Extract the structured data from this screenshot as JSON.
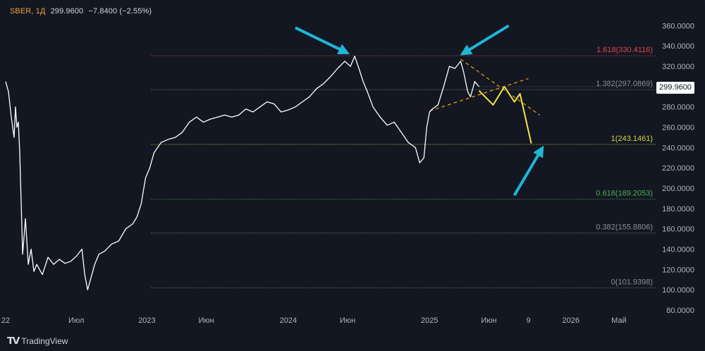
{
  "header": {
    "symbol": "SBER, 1Д",
    "last": "299.9600",
    "change": "−7.8400 (−2.55%)"
  },
  "branding": {
    "logo_text": "TradingView",
    "logo_icon": "tradingview-logo-icon"
  },
  "current_price_label": "299.9600",
  "colors": {
    "background": "#131722",
    "price_line": "#ffffff",
    "forecast_line": "#f5e342",
    "trend_dashes": "#f0a30a",
    "arrows": "#1fb6d6",
    "fib_red": "#e0474c",
    "fib_yellow": "#d8d13a",
    "fib_green": "#4caf50",
    "fib_gray": "#8a8d96",
    "axis_text": "#b2b5be"
  },
  "chart_data": {
    "type": "line",
    "y_axis": {
      "ticks": [
        "80.0000",
        "100.0000",
        "120.0000",
        "140.0000",
        "160.0000",
        "180.0000",
        "200.0000",
        "220.0000",
        "240.0000",
        "260.0000",
        "280.0000",
        "300.0000",
        "320.0000",
        "340.0000",
        "360.0000"
      ],
      "ylim": [
        80,
        370
      ]
    },
    "x_axis": {
      "ticks": [
        {
          "label": "22",
          "t": 0.0
        },
        {
          "label": "Июл",
          "t": 0.5
        },
        {
          "label": "2023",
          "t": 1.0
        },
        {
          "label": "Июн",
          "t": 1.42
        },
        {
          "label": "2024",
          "t": 2.0
        },
        {
          "label": "Июн",
          "t": 2.42
        },
        {
          "label": "2025",
          "t": 3.0
        },
        {
          "label": "Июн",
          "t": 3.42
        },
        {
          "label": "9",
          "t": 3.7
        },
        {
          "label": "2026",
          "t": 4.0
        },
        {
          "label": "Май",
          "t": 4.34
        }
      ],
      "xlim": [
        0.0,
        4.6
      ]
    },
    "series": [
      {
        "points": [
          [
            0.0,
            305
          ],
          [
            0.02,
            295
          ],
          [
            0.04,
            270
          ],
          [
            0.06,
            250
          ],
          [
            0.07,
            280
          ],
          [
            0.08,
            260
          ],
          [
            0.09,
            265
          ],
          [
            0.1,
            235
          ],
          [
            0.12,
            135
          ],
          [
            0.14,
            170
          ],
          [
            0.16,
            125
          ],
          [
            0.18,
            140
          ],
          [
            0.2,
            118
          ],
          [
            0.22,
            125
          ],
          [
            0.26,
            115
          ],
          [
            0.3,
            132
          ],
          [
            0.34,
            125
          ],
          [
            0.38,
            130
          ],
          [
            0.42,
            126
          ],
          [
            0.46,
            128
          ],
          [
            0.5,
            133
          ],
          [
            0.54,
            140
          ],
          [
            0.56,
            115
          ],
          [
            0.58,
            100
          ],
          [
            0.6,
            110
          ],
          [
            0.63,
            125
          ],
          [
            0.66,
            135
          ],
          [
            0.7,
            138
          ],
          [
            0.75,
            145
          ],
          [
            0.8,
            148
          ],
          [
            0.85,
            160
          ],
          [
            0.9,
            165
          ],
          [
            0.93,
            172
          ],
          [
            0.96,
            185
          ],
          [
            0.99,
            210
          ],
          [
            1.02,
            220
          ],
          [
            1.05,
            235
          ],
          [
            1.1,
            245
          ],
          [
            1.15,
            248
          ],
          [
            1.2,
            250
          ],
          [
            1.25,
            255
          ],
          [
            1.3,
            265
          ],
          [
            1.35,
            270
          ],
          [
            1.4,
            265
          ],
          [
            1.45,
            268
          ],
          [
            1.5,
            270
          ],
          [
            1.55,
            272
          ],
          [
            1.6,
            270
          ],
          [
            1.65,
            272
          ],
          [
            1.7,
            278
          ],
          [
            1.75,
            275
          ],
          [
            1.8,
            280
          ],
          [
            1.85,
            285
          ],
          [
            1.9,
            283
          ],
          [
            1.95,
            275
          ],
          [
            2.0,
            277
          ],
          [
            2.05,
            280
          ],
          [
            2.1,
            285
          ],
          [
            2.15,
            290
          ],
          [
            2.2,
            298
          ],
          [
            2.25,
            303
          ],
          [
            2.3,
            310
          ],
          [
            2.35,
            318
          ],
          [
            2.4,
            325
          ],
          [
            2.44,
            320
          ],
          [
            2.47,
            330
          ],
          [
            2.5,
            318
          ],
          [
            2.53,
            305
          ],
          [
            2.56,
            295
          ],
          [
            2.6,
            280
          ],
          [
            2.65,
            270
          ],
          [
            2.7,
            262
          ],
          [
            2.75,
            265
          ],
          [
            2.8,
            255
          ],
          [
            2.85,
            245
          ],
          [
            2.9,
            240
          ],
          [
            2.93,
            225
          ],
          [
            2.96,
            230
          ],
          [
            2.98,
            260
          ],
          [
            3.0,
            275
          ],
          [
            3.02,
            278
          ],
          [
            3.06,
            282
          ],
          [
            3.1,
            300
          ],
          [
            3.14,
            320
          ],
          [
            3.18,
            318
          ],
          [
            3.22,
            325
          ],
          [
            3.24,
            315
          ],
          [
            3.27,
            295
          ],
          [
            3.29,
            290
          ],
          [
            3.32,
            305
          ],
          [
            3.35,
            300
          ]
        ]
      }
    ],
    "forecast": [
      [
        3.35,
        296
      ],
      [
        3.45,
        282
      ],
      [
        3.53,
        300
      ],
      [
        3.6,
        285
      ],
      [
        3.64,
        293
      ],
      [
        3.72,
        244
      ]
    ],
    "trend_lines": [
      {
        "from": [
          3.0,
          276
        ],
        "to": [
          3.7,
          308
        ]
      },
      {
        "from": [
          3.22,
          327
        ],
        "to": [
          3.78,
          272
        ]
      }
    ],
    "fib_levels": [
      {
        "label": "1.618(330.4116)",
        "value": 330.4116,
        "color": "#e0474c"
      },
      {
        "label": "1.382(297.0869)",
        "value": 297.0869,
        "color": "#8a8d96"
      },
      {
        "label": "1(243.1461)",
        "value": 243.1461,
        "color": "#d8d13a"
      },
      {
        "label": "0.618(189.2053)",
        "value": 189.2053,
        "color": "#4caf50"
      },
      {
        "label": "0.382(155.8806)",
        "value": 155.8806,
        "color": "#8a8d96"
      },
      {
        "label": "0(101.9398)",
        "value": 101.9398,
        "color": "#8a8d96"
      }
    ],
    "fib_x_start": 1.03,
    "annotations": [
      {
        "type": "arrow",
        "from": [
          2.05,
          358
        ],
        "to": [
          2.42,
          333
        ],
        "color": "#1fb6d6"
      },
      {
        "type": "arrow",
        "from": [
          3.56,
          360
        ],
        "to": [
          3.23,
          332
        ],
        "color": "#1fb6d6"
      },
      {
        "type": "arrow",
        "from": [
          3.6,
          193
        ],
        "to": [
          3.8,
          240
        ],
        "color": "#1fb6d6"
      }
    ]
  }
}
